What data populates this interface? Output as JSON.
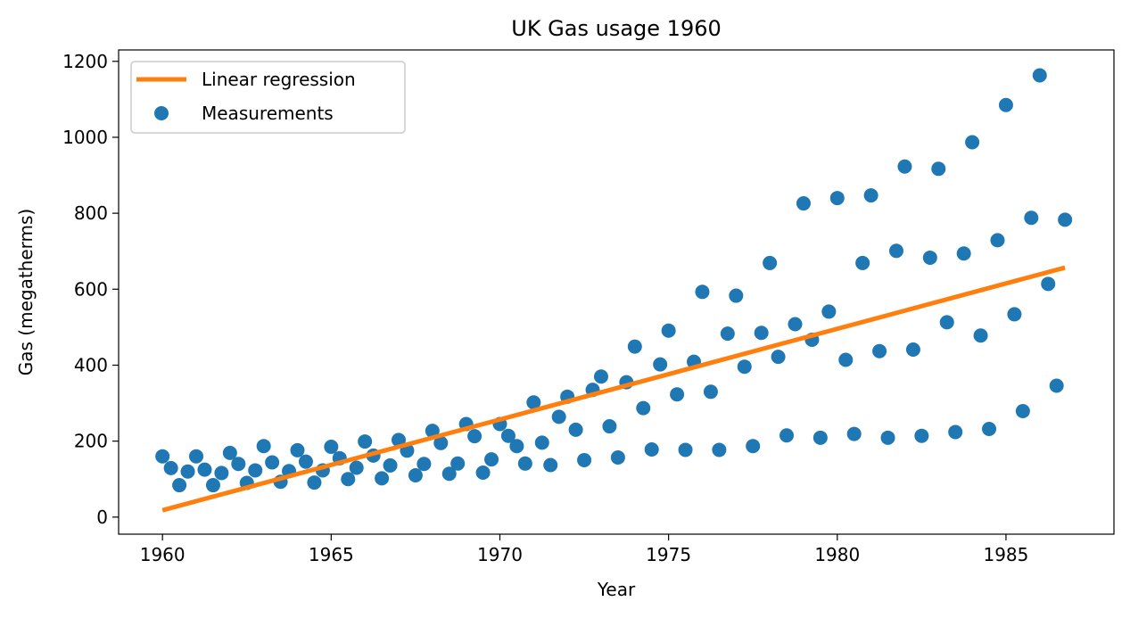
{
  "chart_data": {
    "type": "scatter",
    "title": "UK Gas usage 1960",
    "xlabel": "Year",
    "ylabel": "Gas (megatherms)",
    "xlim": [
      1958.7,
      1988.2
    ],
    "ylim": [
      -45,
      1230
    ],
    "xticks": [
      1960,
      1965,
      1970,
      1975,
      1980,
      1985
    ],
    "yticks": [
      0,
      200,
      400,
      600,
      800,
      1000,
      1200
    ],
    "grid": false,
    "legend_position": "top-left",
    "colors": {
      "measurements": "#1f77b4",
      "regression": "#ff7f0e"
    },
    "series": [
      {
        "name": "Linear regression",
        "kind": "line",
        "x": [
          1960.0,
          1986.75
        ],
        "y": [
          18,
          657
        ]
      },
      {
        "name": "Measurements",
        "kind": "scatter",
        "x": [
          1960.0,
          1960.25,
          1960.5,
          1960.75,
          1961.0,
          1961.25,
          1961.5,
          1961.75,
          1962.0,
          1962.25,
          1962.5,
          1962.75,
          1963.0,
          1963.25,
          1963.5,
          1963.75,
          1964.0,
          1964.25,
          1964.5,
          1964.75,
          1965.0,
          1965.25,
          1965.5,
          1965.75,
          1966.0,
          1966.25,
          1966.5,
          1966.75,
          1967.0,
          1967.25,
          1967.5,
          1967.75,
          1968.0,
          1968.25,
          1968.5,
          1968.75,
          1969.0,
          1969.25,
          1969.5,
          1969.75,
          1970.0,
          1970.25,
          1970.5,
          1970.75,
          1971.0,
          1971.25,
          1971.5,
          1971.75,
          1972.0,
          1972.25,
          1972.5,
          1972.75,
          1973.0,
          1973.25,
          1973.5,
          1973.75,
          1974.0,
          1974.25,
          1974.5,
          1974.75,
          1975.0,
          1975.25,
          1975.5,
          1975.75,
          1976.0,
          1976.25,
          1976.5,
          1976.75,
          1977.0,
          1977.25,
          1977.5,
          1977.75,
          1978.0,
          1978.25,
          1978.5,
          1978.75,
          1979.0,
          1979.25,
          1979.5,
          1979.75,
          1980.0,
          1980.25,
          1980.5,
          1980.75,
          1981.0,
          1981.25,
          1981.5,
          1981.75,
          1982.0,
          1982.25,
          1982.5,
          1982.75,
          1983.0,
          1983.25,
          1983.5,
          1983.75,
          1984.0,
          1984.25,
          1984.5,
          1984.75,
          1985.0,
          1985.25,
          1985.5,
          1985.75,
          1986.0,
          1986.25,
          1986.5,
          1986.75
        ],
        "y": [
          160,
          129,
          84,
          120,
          160,
          125,
          84,
          116,
          169,
          140,
          90,
          123,
          187,
          144,
          93,
          121,
          176,
          146,
          91,
          123,
          185,
          155,
          100,
          130,
          199,
          162,
          102,
          136,
          203,
          175,
          110,
          140,
          227,
          195,
          114,
          141,
          245,
          213,
          117,
          152,
          245,
          214,
          187,
          141,
          302,
          196,
          137,
          264,
          317,
          230,
          150,
          335,
          370,
          239,
          157,
          355,
          449,
          287,
          178,
          402,
          491,
          323,
          177,
          409,
          593,
          330,
          177,
          483,
          583,
          396,
          187,
          485,
          669,
          422,
          215,
          508,
          826,
          467,
          209,
          541,
          840,
          414,
          219,
          669,
          847,
          437,
          209,
          701,
          923,
          441,
          214,
          683,
          917,
          513,
          224,
          694,
          987,
          478,
          232,
          729,
          1085,
          534,
          279,
          788,
          1163,
          614,
          346,
          783
        ]
      }
    ],
    "legend": [
      {
        "label": "Linear regression",
        "marker": "line"
      },
      {
        "label": "Measurements",
        "marker": "dot"
      }
    ]
  }
}
